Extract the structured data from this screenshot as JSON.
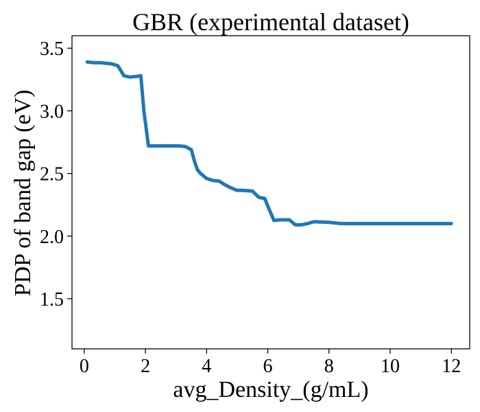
{
  "chart_data": {
    "type": "line",
    "title": "GBR (experimental dataset)",
    "xlabel": "avg_Density_(g/mL)",
    "ylabel": "PDP of band gap (eV)",
    "xlim": [
      -0.4,
      12.6
    ],
    "ylim": [
      1.1,
      3.6
    ],
    "xticks": [
      0,
      2,
      4,
      6,
      8,
      10,
      12
    ],
    "yticks": [
      1.5,
      2.0,
      2.5,
      3.0,
      3.5
    ],
    "xtick_labels": [
      "0",
      "2",
      "4",
      "6",
      "8",
      "10",
      "12"
    ],
    "ytick_labels": [
      "1.5",
      "2.0",
      "2.5",
      "3.0",
      "3.5"
    ],
    "grid": false,
    "series": [
      {
        "color": "#1f77b4",
        "x": [
          0.1,
          0.3,
          0.5,
          0.7,
          0.9,
          1.1,
          1.3,
          1.5,
          1.7,
          1.85,
          1.95,
          2.1,
          2.3,
          2.5,
          2.7,
          2.9,
          3.1,
          3.3,
          3.5,
          3.6,
          3.7,
          3.8,
          4.0,
          4.2,
          4.4,
          4.6,
          4.8,
          5.0,
          5.2,
          5.5,
          5.7,
          5.9,
          6.0,
          6.2,
          6.4,
          6.6,
          6.7,
          6.9,
          7.1,
          7.3,
          7.5,
          8.0,
          8.4,
          9.0,
          10.0,
          11.0,
          12.0
        ],
        "y": [
          3.39,
          3.385,
          3.385,
          3.38,
          3.375,
          3.36,
          3.28,
          3.27,
          3.275,
          3.28,
          3.0,
          2.72,
          2.72,
          2.72,
          2.72,
          2.72,
          2.72,
          2.715,
          2.69,
          2.6,
          2.53,
          2.5,
          2.46,
          2.445,
          2.44,
          2.41,
          2.385,
          2.365,
          2.365,
          2.36,
          2.31,
          2.3,
          2.24,
          2.125,
          2.13,
          2.13,
          2.13,
          2.09,
          2.09,
          2.1,
          2.115,
          2.11,
          2.1,
          2.1,
          2.1,
          2.1,
          2.1
        ]
      }
    ]
  }
}
